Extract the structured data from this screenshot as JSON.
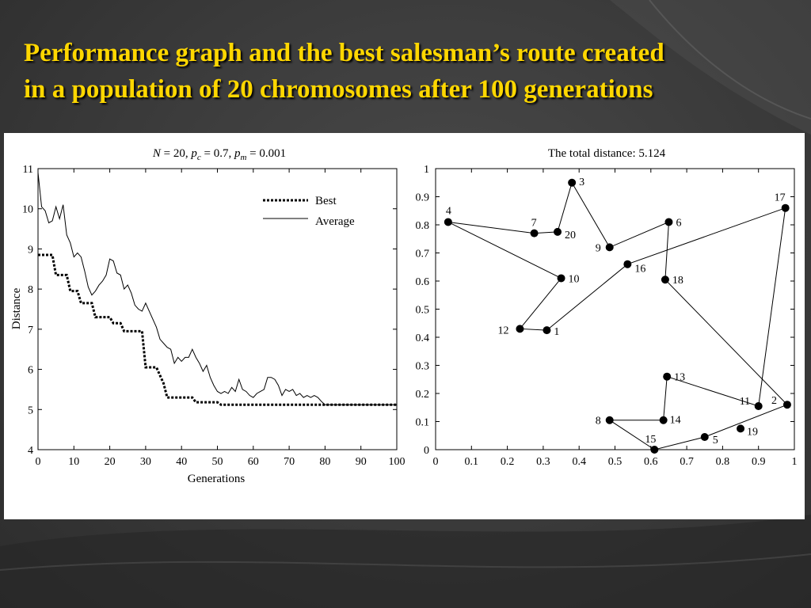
{
  "slide": {
    "title_line1": "Performance graph and the best salesman’s route created",
    "title_line2": "in a population of 20 chromosomes after 100 generations",
    "title_color": "#ffd700"
  },
  "chart_data": [
    {
      "type": "line",
      "title": "N = 20,  pc = 0.7,  pm = 0.001",
      "title_parts": {
        "n_sym": "N",
        "n_val": " = 20,  ",
        "pc_sym": "p",
        "pc_sub": "c",
        "pc_val": " = 0.7,  ",
        "pm_sym": "p",
        "pm_sub": "m",
        "pm_val": " = 0.001"
      },
      "xlabel": "Generations",
      "ylabel": "Distance",
      "xlim": [
        0,
        100
      ],
      "ylim": [
        4,
        11
      ],
      "xticks": [
        0,
        10,
        20,
        30,
        40,
        50,
        60,
        70,
        80,
        90,
        100
      ],
      "yticks": [
        4,
        5,
        6,
        7,
        8,
        9,
        10,
        11
      ],
      "legend": "top-right",
      "series": [
        {
          "name": "Best",
          "style": "dotted",
          "points": [
            [
              0,
              8.85
            ],
            [
              4,
              8.85
            ],
            [
              5,
              8.35
            ],
            [
              8,
              8.35
            ],
            [
              9,
              7.95
            ],
            [
              11,
              7.95
            ],
            [
              12,
              7.65
            ],
            [
              15,
              7.65
            ],
            [
              16,
              7.3
            ],
            [
              20,
              7.3
            ],
            [
              21,
              7.15
            ],
            [
              23,
              7.15
            ],
            [
              24,
              6.95
            ],
            [
              29,
              6.95
            ],
            [
              30,
              6.05
            ],
            [
              33,
              6.05
            ],
            [
              35,
              5.65
            ],
            [
              36,
              5.3
            ],
            [
              43,
              5.3
            ],
            [
              44,
              5.18
            ],
            [
              50,
              5.18
            ],
            [
              51,
              5.12
            ],
            [
              100,
              5.12
            ]
          ]
        },
        {
          "name": "Average",
          "style": "solid",
          "points": [
            [
              0,
              10.9
            ],
            [
              1,
              10.05
            ],
            [
              2,
              9.95
            ],
            [
              3,
              9.65
            ],
            [
              4,
              9.7
            ],
            [
              5,
              10.05
            ],
            [
              6,
              9.75
            ],
            [
              7,
              10.1
            ],
            [
              8,
              9.35
            ],
            [
              9,
              9.15
            ],
            [
              10,
              8.8
            ],
            [
              11,
              8.9
            ],
            [
              12,
              8.8
            ],
            [
              13,
              8.45
            ],
            [
              14,
              8.05
            ],
            [
              15,
              7.85
            ],
            [
              16,
              7.95
            ],
            [
              17,
              8.1
            ],
            [
              18,
              8.2
            ],
            [
              19,
              8.35
            ],
            [
              20,
              8.75
            ],
            [
              21,
              8.7
            ],
            [
              22,
              8.4
            ],
            [
              23,
              8.35
            ],
            [
              24,
              8.0
            ],
            [
              25,
              8.1
            ],
            [
              26,
              7.9
            ],
            [
              27,
              7.6
            ],
            [
              28,
              7.5
            ],
            [
              29,
              7.45
            ],
            [
              30,
              7.65
            ],
            [
              31,
              7.45
            ],
            [
              32,
              7.25
            ],
            [
              33,
              7.05
            ],
            [
              34,
              6.75
            ],
            [
              35,
              6.65
            ],
            [
              36,
              6.55
            ],
            [
              37,
              6.5
            ],
            [
              38,
              6.15
            ],
            [
              39,
              6.3
            ],
            [
              40,
              6.2
            ],
            [
              41,
              6.3
            ],
            [
              42,
              6.3
            ],
            [
              43,
              6.5
            ],
            [
              44,
              6.3
            ],
            [
              45,
              6.15
            ],
            [
              46,
              5.95
            ],
            [
              47,
              6.1
            ],
            [
              48,
              5.8
            ],
            [
              49,
              5.6
            ],
            [
              50,
              5.45
            ],
            [
              51,
              5.4
            ],
            [
              52,
              5.45
            ],
            [
              53,
              5.4
            ],
            [
              54,
              5.55
            ],
            [
              55,
              5.45
            ],
            [
              56,
              5.75
            ],
            [
              57,
              5.5
            ],
            [
              58,
              5.45
            ],
            [
              59,
              5.35
            ],
            [
              60,
              5.3
            ],
            [
              61,
              5.4
            ],
            [
              62,
              5.45
            ],
            [
              63,
              5.5
            ],
            [
              64,
              5.8
            ],
            [
              65,
              5.8
            ],
            [
              66,
              5.75
            ],
            [
              67,
              5.6
            ],
            [
              68,
              5.35
            ],
            [
              69,
              5.5
            ],
            [
              70,
              5.45
            ],
            [
              71,
              5.5
            ],
            [
              72,
              5.35
            ],
            [
              73,
              5.4
            ],
            [
              74,
              5.3
            ],
            [
              75,
              5.35
            ],
            [
              76,
              5.3
            ],
            [
              77,
              5.35
            ],
            [
              78,
              5.3
            ],
            [
              79,
              5.2
            ],
            [
              80,
              5.12
            ],
            [
              100,
              5.12
            ]
          ]
        }
      ]
    },
    {
      "type": "scatter",
      "title": "The total distance: 5.124",
      "xlim": [
        0,
        1
      ],
      "ylim": [
        0,
        1
      ],
      "xticks": [
        "0",
        "0.1",
        "0.2",
        "0.3",
        "0.4",
        "0.5",
        "0.6",
        "0.7",
        "0.8",
        "0.9",
        "1"
      ],
      "yticks": [
        "0",
        "0.1",
        "0.2",
        "0.3",
        "0.4",
        "0.5",
        "0.6",
        "0.7",
        "0.8",
        "0.9",
        "1"
      ],
      "cities": [
        {
          "id": "1",
          "x": 0.31,
          "y": 0.425
        },
        {
          "id": "2",
          "x": 0.98,
          "y": 0.16
        },
        {
          "id": "3",
          "x": 0.38,
          "y": 0.95
        },
        {
          "id": "4",
          "x": 0.035,
          "y": 0.81
        },
        {
          "id": "5",
          "x": 0.75,
          "y": 0.045
        },
        {
          "id": "6",
          "x": 0.65,
          "y": 0.81
        },
        {
          "id": "7",
          "x": 0.275,
          "y": 0.77
        },
        {
          "id": "8",
          "x": 0.485,
          "y": 0.105
        },
        {
          "id": "9",
          "x": 0.485,
          "y": 0.72
        },
        {
          "id": "10",
          "x": 0.35,
          "y": 0.61
        },
        {
          "id": "11",
          "x": 0.9,
          "y": 0.155
        },
        {
          "id": "12",
          "x": 0.235,
          "y": 0.43
        },
        {
          "id": "13",
          "x": 0.645,
          "y": 0.26
        },
        {
          "id": "14",
          "x": 0.635,
          "y": 0.105
        },
        {
          "id": "15",
          "x": 0.61,
          "y": 0.0
        },
        {
          "id": "16",
          "x": 0.535,
          "y": 0.66
        },
        {
          "id": "17",
          "x": 0.975,
          "y": 0.86
        },
        {
          "id": "18",
          "x": 0.64,
          "y": 0.605
        },
        {
          "id": "19",
          "x": 0.85,
          "y": 0.075
        },
        {
          "id": "20",
          "x": 0.34,
          "y": 0.775
        }
      ],
      "route": [
        "4",
        "10",
        "12",
        "1",
        "16",
        "17",
        "11",
        "13",
        "14",
        "8",
        "15",
        "5",
        "2",
        "18",
        "6",
        "9",
        "3",
        "20",
        "7",
        "4"
      ]
    }
  ]
}
